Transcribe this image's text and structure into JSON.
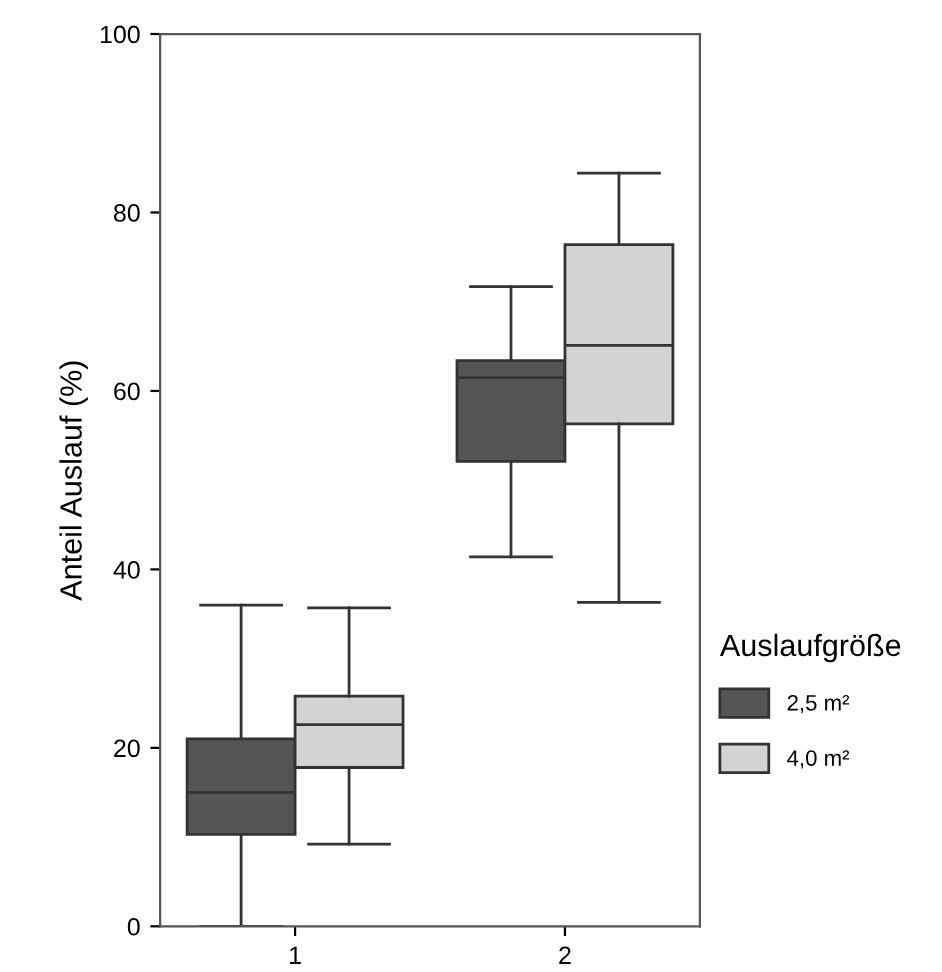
{
  "chart_data": {
    "type": "box",
    "ylabel": "Anteil Auslauf (%)",
    "legend_title": "Auslaufgröße",
    "legend": "right",
    "categories": [
      "1",
      "2"
    ],
    "ylim": [
      0,
      100
    ],
    "yticks": [
      0,
      20,
      40,
      60,
      80,
      100
    ],
    "grid": false,
    "series": [
      {
        "name": "2,5 m²",
        "color": "#555555",
        "boxes": [
          {
            "low": 0,
            "q1": 10.3,
            "median": 15,
            "q3": 21,
            "high": 36
          },
          {
            "low": 41.4,
            "q1": 52.1,
            "median": 61.5,
            "q3": 63.4,
            "high": 71.7
          }
        ]
      },
      {
        "name": "4,0 m²",
        "color": "#d3d3d3",
        "boxes": [
          {
            "low": 9.2,
            "q1": 17.8,
            "median": 22.6,
            "q3": 25.8,
            "high": 35.7
          },
          {
            "low": 36.3,
            "q1": 56.3,
            "median": 65.1,
            "q3": 76.4,
            "high": 84.4
          }
        ]
      }
    ]
  }
}
